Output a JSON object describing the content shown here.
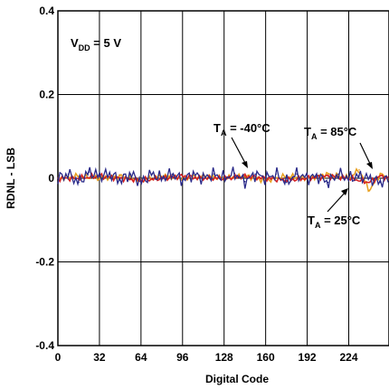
{
  "chart_data": {
    "type": "line",
    "title": "",
    "xlabel": "Digital Code",
    "ylabel": "RDNL - LSB",
    "xlim": [
      0,
      255
    ],
    "ylim": [
      -0.4,
      0.4
    ],
    "x_ticks": [
      0,
      32,
      64,
      96,
      128,
      160,
      192,
      224
    ],
    "x_tick_labels": [
      "0",
      "32",
      "64",
      "96",
      "128",
      "160",
      "192",
      "224"
    ],
    "y_ticks": [
      0.4,
      0.2,
      0,
      -0.2,
      -0.4
    ],
    "y_tick_labels": [
      "0.4",
      "0.2",
      "0",
      "-0.2",
      "-0.4"
    ],
    "grid": true,
    "colors": {
      "ta_minus40": "#2b2b8a",
      "ta_85": "#e8a020",
      "ta_25": "#d42020"
    },
    "series": [
      {
        "name": "T_A = -40°C",
        "x": [
          0,
          8,
          16,
          24,
          32,
          40,
          48,
          56,
          64,
          72,
          80,
          88,
          96,
          104,
          112,
          120,
          128,
          136,
          144,
          152,
          160,
          168,
          176,
          184,
          192,
          200,
          208,
          216,
          224,
          232,
          240,
          248,
          255
        ],
        "values": [
          0.0,
          0.01,
          -0.01,
          0.015,
          0.005,
          0.01,
          -0.005,
          0.01,
          -0.01,
          0.01,
          0.0,
          0.01,
          -0.005,
          0.01,
          0.0,
          0.01,
          0.0,
          0.012,
          -0.008,
          0.01,
          0.0,
          0.01,
          -0.01,
          0.01,
          0.0,
          0.005,
          -0.01,
          0.01,
          0.0,
          0.005,
          0.0,
          -0.01,
          0.0
        ]
      },
      {
        "name": "T_A = 85°C",
        "x": [
          0,
          16,
          32,
          48,
          64,
          80,
          96,
          112,
          128,
          144,
          160,
          176,
          192,
          208,
          224,
          232,
          240,
          248,
          255
        ],
        "values": [
          0.0,
          0.005,
          0.0,
          0.005,
          -0.005,
          0.005,
          0.0,
          0.005,
          0.0,
          0.005,
          -0.005,
          0.005,
          0.0,
          0.01,
          0.0,
          0.02,
          -0.03,
          0.01,
          0.0
        ]
      },
      {
        "name": "T_A = 25°C",
        "x": [
          0,
          16,
          32,
          48,
          64,
          80,
          96,
          112,
          128,
          144,
          160,
          176,
          192,
          208,
          224,
          240,
          248,
          255
        ],
        "values": [
          0.0,
          0.0,
          0.005,
          0.0,
          -0.005,
          0.0,
          0.005,
          0.0,
          0.0,
          0.005,
          0.0,
          -0.005,
          0.0,
          0.005,
          0.0,
          -0.01,
          0.005,
          0.0
        ]
      }
    ],
    "annotations": [
      {
        "main": "V",
        "sub": "DD",
        "rest": " = 5 V"
      },
      {
        "main": "T",
        "sub": "A",
        "rest": " = -40°C"
      },
      {
        "main": "T",
        "sub": "A",
        "rest": " = 85°C"
      },
      {
        "main": "T",
        "sub": "A",
        "rest": " = 25°C"
      }
    ]
  }
}
